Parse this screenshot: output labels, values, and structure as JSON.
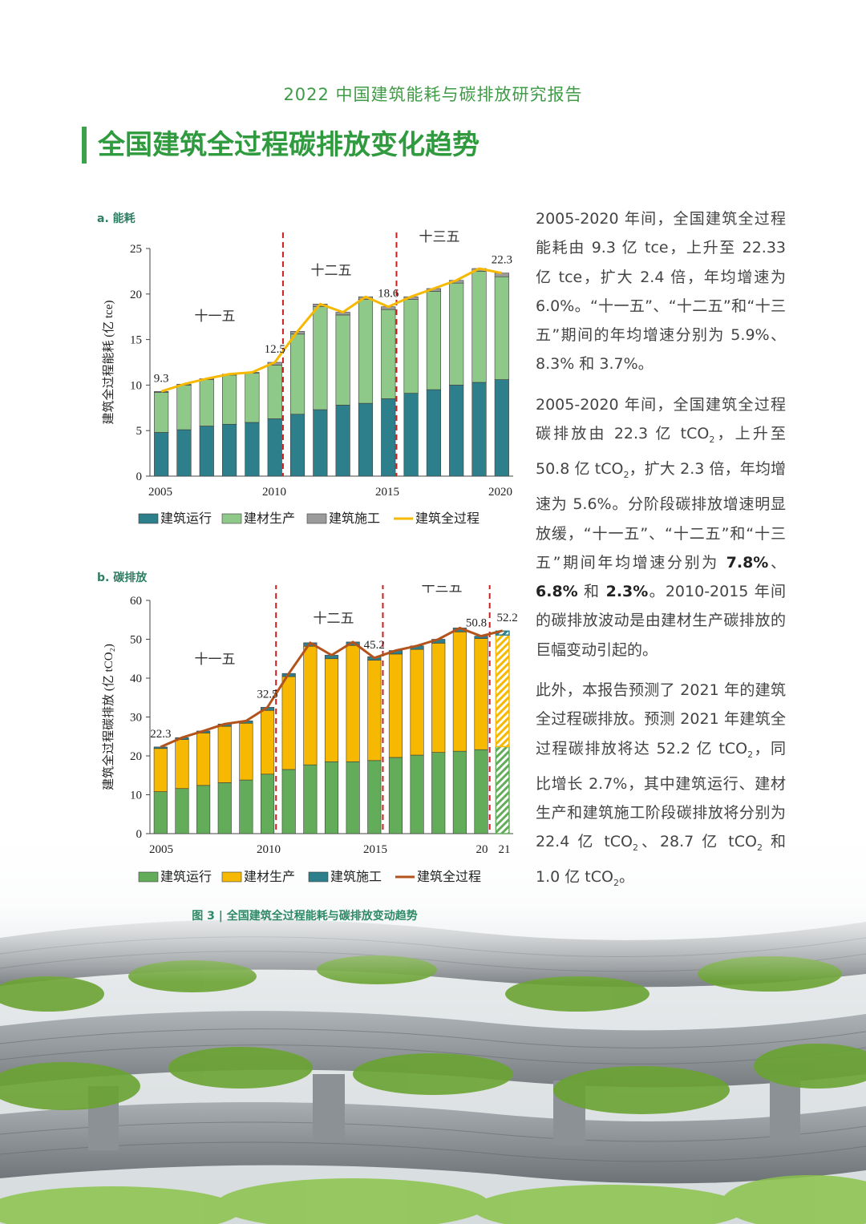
{
  "header": {
    "title": "2022 中国建筑能耗与碳排放研究报告"
  },
  "page": {
    "title": "全国建筑全过程碳排放变化趋势"
  },
  "colors": {
    "accent": "#3aa24a",
    "teal": "#2e7f8c",
    "lightgreen": "#8fc98a",
    "gray": "#9b9b9b",
    "yellow": "#f6b800",
    "green": "#63ad5a",
    "brown": "#b3531b",
    "red": "#cc1f1f"
  },
  "figure": {
    "caption": "图 3 | 全国建筑全过程能耗与碳排放变动趋势"
  },
  "chart_data": [
    {
      "type": "bar",
      "panel_label": "a. 能耗",
      "ylabel": "建筑全过程能耗 (亿 tce)",
      "ylim": [
        0,
        25
      ],
      "yticks": [
        0,
        5,
        10,
        15,
        20,
        25
      ],
      "x": [
        2005,
        2006,
        2007,
        2008,
        2009,
        2010,
        2011,
        2012,
        2013,
        2014,
        2015,
        2016,
        2017,
        2018,
        2019,
        2020
      ],
      "xtick_labels": [
        "2005",
        "2010",
        "2015",
        "2020"
      ],
      "period_labels": [
        "十一五",
        "十二五",
        "十三五"
      ],
      "stacked": true,
      "series": [
        {
          "name": "建筑运行",
          "values": [
            4.8,
            5.1,
            5.5,
            5.7,
            5.9,
            6.3,
            6.8,
            7.3,
            7.8,
            8.0,
            8.5,
            9.1,
            9.5,
            10.0,
            10.3,
            10.6
          ]
        },
        {
          "name": "建材生产",
          "values": [
            4.4,
            4.9,
            5.1,
            5.4,
            5.4,
            5.9,
            8.8,
            11.3,
            9.9,
            11.4,
            9.8,
            10.3,
            10.8,
            11.2,
            12.2,
            11.3
          ]
        },
        {
          "name": "建筑施工",
          "values": [
            0.1,
            0.1,
            0.1,
            0.1,
            0.1,
            0.3,
            0.3,
            0.3,
            0.3,
            0.3,
            0.3,
            0.3,
            0.3,
            0.3,
            0.3,
            0.4
          ]
        },
        {
          "name": "建筑全过程",
          "type": "line",
          "values": [
            9.3,
            10.1,
            10.7,
            11.2,
            11.4,
            12.5,
            15.9,
            18.9,
            18.0,
            19.7,
            18.6,
            19.7,
            20.6,
            21.5,
            22.8,
            22.3
          ]
        }
      ],
      "data_labels": [
        {
          "index": 0,
          "text": "9.3"
        },
        {
          "index": 5,
          "text": "12.5"
        },
        {
          "index": 10,
          "text": "18.6"
        },
        {
          "index": 15,
          "text": "22.3"
        }
      ],
      "legend": [
        "建筑运行",
        "建材生产",
        "建筑施工",
        "建筑全过程"
      ],
      "legend_position": "bottom"
    },
    {
      "type": "bar",
      "panel_label": "b. 碳排放",
      "ylabel": "建筑全过程碳排放 (亿 tCO₂)",
      "ylim": [
        0,
        60
      ],
      "yticks": [
        0,
        10,
        20,
        30,
        40,
        50,
        60
      ],
      "x": [
        2005,
        2006,
        2007,
        2008,
        2009,
        2010,
        2011,
        2012,
        2013,
        2014,
        2015,
        2016,
        2017,
        2018,
        2019,
        2020,
        2021
      ],
      "xtick_labels": [
        "2005",
        "2010",
        "2015",
        "20",
        "21"
      ],
      "period_labels": [
        "十一五",
        "十二五",
        "十三五"
      ],
      "stacked": true,
      "forecast_index": 16,
      "series": [
        {
          "name": "建筑运行",
          "values": [
            10.8,
            11.6,
            12.4,
            13.1,
            13.8,
            15.3,
            16.5,
            17.7,
            18.5,
            18.5,
            18.8,
            19.6,
            20.2,
            20.9,
            21.2,
            21.6,
            22.4
          ]
        },
        {
          "name": "建材生产",
          "values": [
            11.1,
            12.6,
            13.5,
            14.5,
            14.6,
            16.4,
            23.9,
            30.5,
            26.5,
            29.9,
            25.8,
            26.6,
            27.2,
            28.1,
            30.7,
            28.6,
            28.7
          ]
        },
        {
          "name": "建筑施工",
          "values": [
            0.4,
            0.5,
            0.5,
            0.6,
            0.6,
            0.8,
            0.8,
            0.9,
            0.9,
            0.9,
            0.9,
            0.9,
            0.9,
            1.0,
            1.0,
            0.6,
            1.0
          ]
        },
        {
          "name": "建筑全过程",
          "type": "line",
          "values": [
            22.3,
            24.7,
            26.4,
            28.2,
            29.0,
            32.5,
            41.2,
            49.1,
            45.9,
            49.3,
            45.2,
            47.1,
            48.3,
            50.0,
            52.9,
            50.8,
            52.2
          ]
        }
      ],
      "data_labels": [
        {
          "index": 0,
          "text": "22.3"
        },
        {
          "index": 5,
          "text": "32.5"
        },
        {
          "index": 10,
          "text": "45.2"
        },
        {
          "index": 15,
          "text": "50.8"
        },
        {
          "index": 16,
          "text": "52.2"
        }
      ],
      "legend": [
        "建筑运行",
        "建材生产",
        "建筑施工",
        "建筑全过程"
      ],
      "legend_position": "bottom"
    }
  ]
}
